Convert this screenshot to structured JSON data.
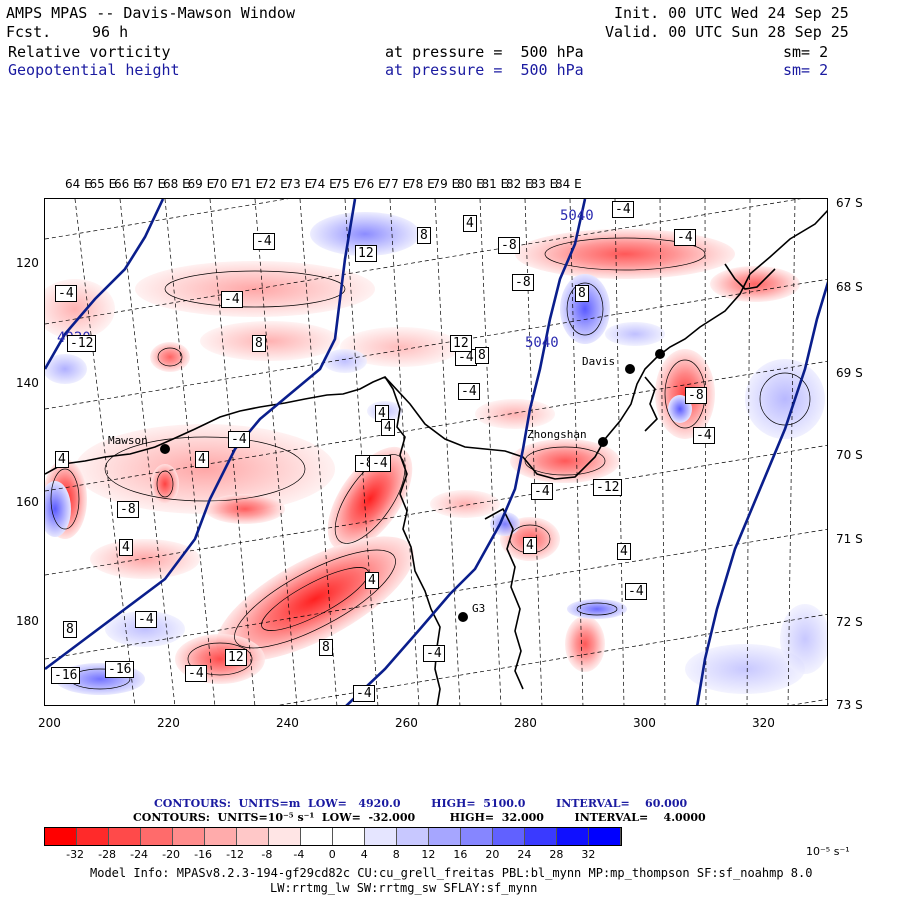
{
  "header": {
    "title": "AMPS MPAS -- Davis-Mawson Window",
    "fcst_label": "Fcst.",
    "fcst_value": "96 h",
    "init": "Init. 00 UTC Wed 24 Sep 25",
    "valid": "Valid. 00 UTC Sun 28 Sep 25"
  },
  "fields": [
    {
      "name": "Relative vorticity",
      "level": "at pressure =  500 hPa",
      "smooth": "sm= 2",
      "color": "#000000"
    },
    {
      "name": "Geopotential height",
      "level": "at pressure =  500 hPa",
      "smooth": "sm= 2",
      "color": "#1a1aa0"
    }
  ],
  "map": {
    "lon_labels": [
      "64 E",
      "65 E",
      "66 E",
      "67 E",
      "68 E",
      "69 E",
      "70 E",
      "71 E",
      "72 E",
      "73 E",
      "74 E",
      "75 E",
      "76 E",
      "77 E",
      "78 E",
      "79 E",
      "80 E",
      "81 E",
      "82 E",
      "83 E",
      "84 E"
    ],
    "lat_labels": [
      "67 S",
      "68 S",
      "69 S",
      "70 S",
      "71 S",
      "72 S",
      "73 S"
    ],
    "y_ticks": [
      "120",
      "140",
      "160",
      "180"
    ],
    "x_ticks": [
      "200",
      "220",
      "240",
      "260",
      "280",
      "300",
      "320"
    ],
    "stations": [
      "Mawson",
      "Davis",
      "Zhongshan",
      "G3"
    ],
    "height_labels": [
      "4920",
      "5040",
      "5040"
    ],
    "vort_labels": [
      "-4",
      "12",
      "8",
      "4",
      "-8",
      "-8",
      "-4",
      "-4",
      "-4",
      "-4",
      "8",
      "-12",
      "-4",
      "8",
      "12",
      "-4",
      "-16",
      "-16",
      "12",
      "8",
      "-4",
      "-8",
      "-4",
      "-12",
      "4",
      "4",
      "-8",
      "-4",
      "4",
      "-4",
      "4",
      "-8",
      "4",
      "-4",
      "8",
      "4",
      "8",
      "-4",
      "-4",
      "8",
      "4",
      "4",
      "-4",
      "-4"
    ],
    "colors": {
      "height_contour": "#0a1e8c",
      "coast": "#000000",
      "grid": "#000000"
    }
  },
  "contour_info": {
    "line1": "CONTOURS:  UNITS=m  LOW=   4920.0        HIGH=  5100.0        INTERVAL=    60.000",
    "line2": "CONTOURS:  UNITS=10⁻⁵ s⁻¹  LOW=  -32.000         HIGH=  32.000        INTERVAL=    4.0000"
  },
  "colorbar": {
    "colors": [
      "#ff0000",
      "#ff2a2a",
      "#ff4a4a",
      "#ff6b6b",
      "#ff8c8c",
      "#ffabab",
      "#ffc8c8",
      "#ffe5e5",
      "#ffffff",
      "#ffffff",
      "#e5e5ff",
      "#c8c8ff",
      "#a6a6ff",
      "#8686ff",
      "#6161ff",
      "#3a3aff",
      "#1010ff",
      "#0000ff"
    ],
    "labels": [
      "-32",
      "-28",
      "-24",
      "-20",
      "-16",
      "-12",
      "-8",
      "-4",
      "0",
      "4",
      "8",
      "12",
      "16",
      "20",
      "24",
      "28",
      "32"
    ],
    "units": "10⁻⁵ s⁻¹"
  },
  "footer": {
    "line1": "Model Info: MPASv8.2.3-194-gf29cd82c CU:cu_grell_freitas PBL:bl_mynn MP:mp_thompson SF:sf_noahmp 8.0",
    "line2": "LW:rrtmg_lw SW:rrtmg_sw SFLAY:sf_mynn"
  }
}
